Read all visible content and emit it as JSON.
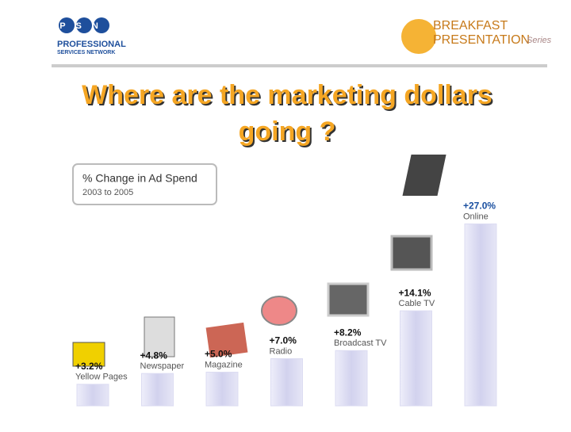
{
  "header": {
    "logo_left": "PSN",
    "logo_left_line1": "PROFESSIONAL",
    "logo_left_line2": "SERVICES NETWORK",
    "logo_right_line1": "BREAKFAST",
    "logo_right_line2": "PRESENTATION",
    "logo_right_series": "Series"
  },
  "chart_data": {
    "type": "bar",
    "title": "Where are the marketing dollars going ?",
    "box_title": "% Change in Ad Spend",
    "box_subtitle": "2003 to 2005",
    "categories": [
      "Yellow Pages",
      "Newspaper",
      "Magazine",
      "Radio",
      "Broadcast TV",
      "Cable TV",
      "Online"
    ],
    "values": [
      3.2,
      4.8,
      5.0,
      7.0,
      8.2,
      14.1,
      27.0
    ],
    "value_labels": [
      "+3.2%",
      "+4.8%",
      "+5.0%",
      "+7.0%",
      "+8.2%",
      "+14.1%",
      "+27.0%"
    ],
    "color": "#dcdcf2"
  }
}
